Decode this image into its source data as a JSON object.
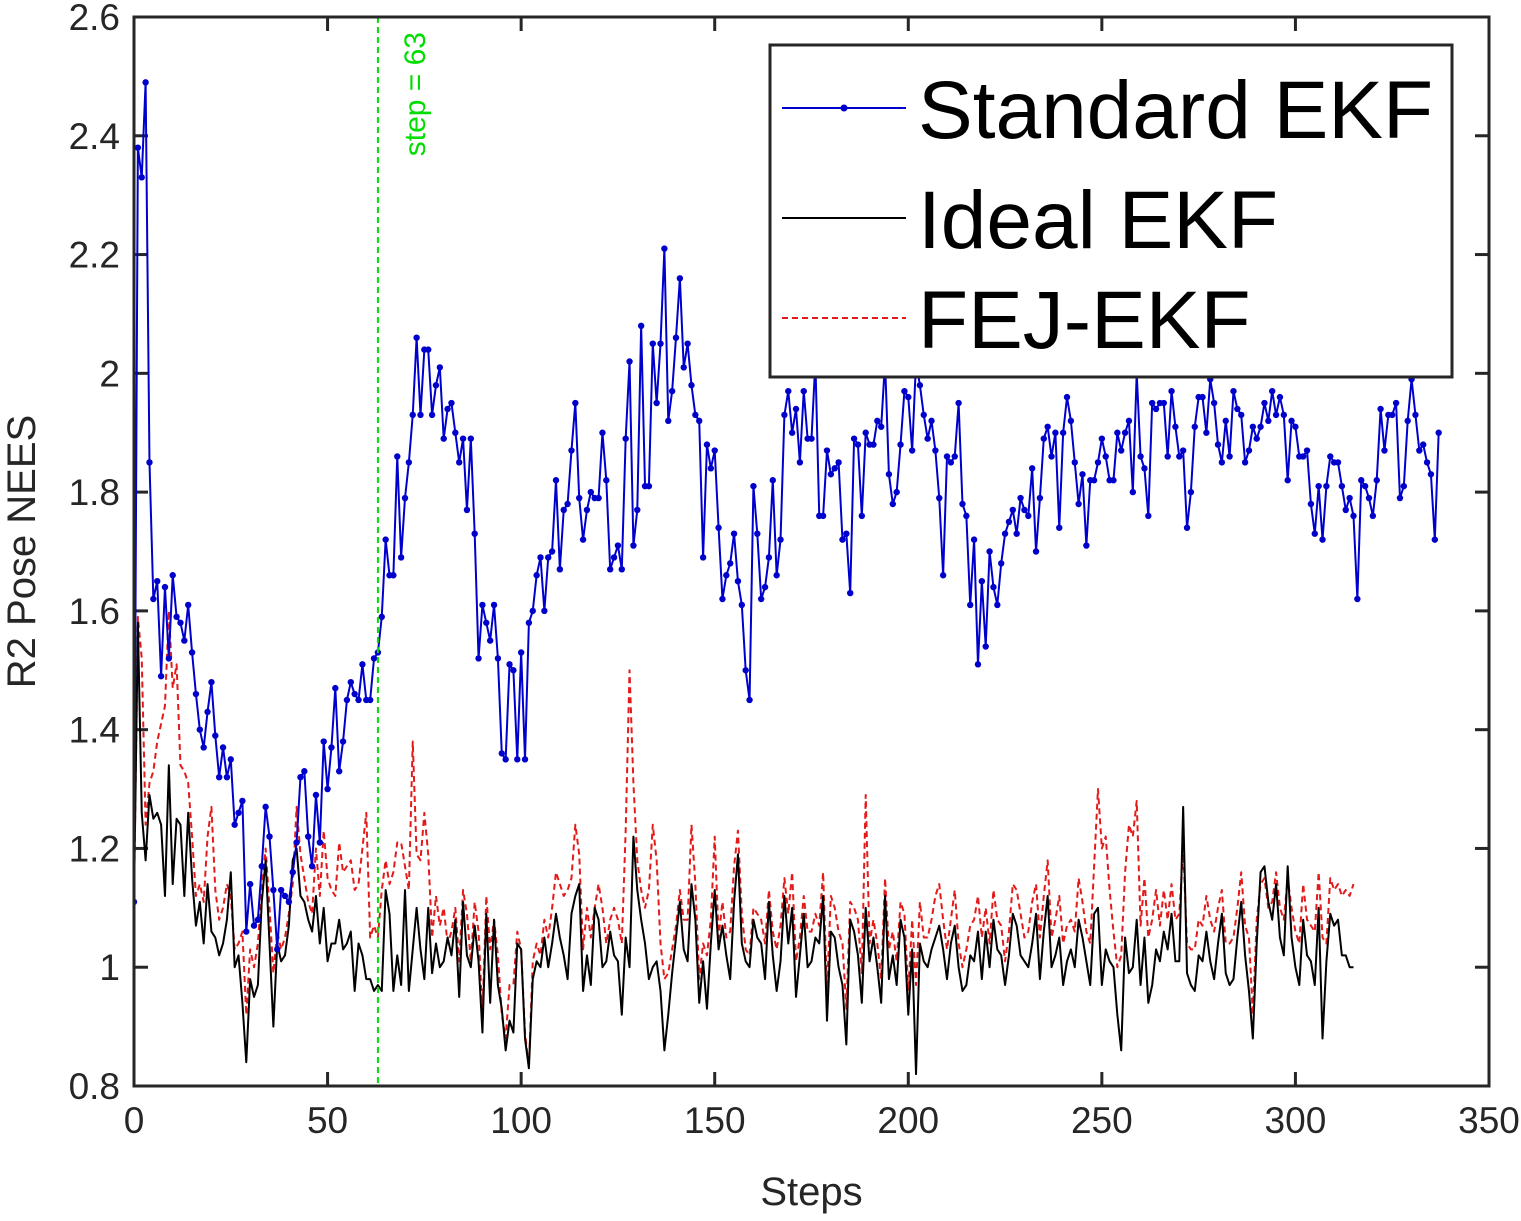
{
  "chart_data": {
    "type": "line",
    "title": "",
    "xlabel": "Steps",
    "ylabel": "R2 Pose NEES",
    "xlim": [
      0,
      350
    ],
    "ylim": [
      0.8,
      2.6
    ],
    "xticks": [
      0,
      50,
      100,
      150,
      200,
      250,
      300,
      350
    ],
    "yticks": [
      0.8,
      1,
      1.2,
      1.4,
      1.6,
      1.8,
      2,
      2.2,
      2.4,
      2.6
    ],
    "xtick_labels": [
      "0",
      "50",
      "100",
      "150",
      "200",
      "250",
      "300",
      "350"
    ],
    "ytick_labels": [
      "0.8",
      "1",
      "1.2",
      "1.4",
      "1.6",
      "1.8",
      "2",
      "2.2",
      "2.4",
      "2.6"
    ],
    "grid": false,
    "legend_position": "top-right",
    "annotation": {
      "text": "step = 63",
      "x": 63,
      "color": "#00dd00"
    },
    "series": [
      {
        "name": "Standard EKF",
        "color": "#0000cc",
        "style": "solid-markers",
        "values": [
          1.11,
          2.38,
          2.33,
          2.49,
          1.85,
          1.62,
          1.65,
          1.49,
          1.64,
          1.52,
          1.66,
          1.59,
          1.58,
          1.55,
          1.61,
          1.53,
          1.46,
          1.4,
          1.37,
          1.43,
          1.48,
          1.39,
          1.32,
          1.37,
          1.32,
          1.35,
          1.24,
          1.26,
          1.28,
          1.06,
          1.14,
          1.07,
          1.08,
          1.17,
          1.27,
          1.22,
          1.13,
          1.03,
          1.13,
          1.12,
          1.11,
          1.16,
          1.21,
          1.32,
          1.33,
          1.22,
          1.17,
          1.29,
          1.21,
          1.38,
          1.3,
          1.37,
          1.47,
          1.33,
          1.38,
          1.45,
          1.48,
          1.46,
          1.45,
          1.51,
          1.45,
          1.45,
          1.52,
          1.53,
          1.59,
          1.72,
          1.66,
          1.66,
          1.86,
          1.69,
          1.79,
          1.85,
          1.93,
          2.06,
          1.93,
          2.04,
          2.04,
          1.93,
          1.98,
          2.01,
          1.89,
          1.94,
          1.95,
          1.9,
          1.85,
          1.89,
          1.77,
          1.89,
          1.73,
          1.52,
          1.61,
          1.58,
          1.55,
          1.61,
          1.52,
          1.36,
          1.35,
          1.51,
          1.5,
          1.35,
          1.53,
          1.35,
          1.58,
          1.6,
          1.66,
          1.69,
          1.6,
          1.69,
          1.7,
          1.82,
          1.67,
          1.77,
          1.78,
          1.87,
          1.95,
          1.79,
          1.72,
          1.77,
          1.8,
          1.79,
          1.79,
          1.9,
          1.82,
          1.67,
          1.69,
          1.71,
          1.67,
          1.89,
          2.02,
          1.71,
          1.77,
          2.08,
          1.81,
          1.81,
          2.05,
          1.95,
          2.05,
          2.21,
          1.92,
          1.97,
          2.06,
          2.16,
          2.01,
          2.05,
          1.98,
          1.93,
          1.92,
          1.69,
          1.88,
          1.84,
          1.87,
          1.74,
          1.62,
          1.66,
          1.68,
          1.73,
          1.65,
          1.61,
          1.5,
          1.45,
          1.81,
          1.73,
          1.62,
          1.64,
          1.69,
          1.82,
          1.66,
          1.72,
          1.93,
          1.97,
          1.9,
          1.94,
          1.85,
          1.97,
          1.89,
          1.89,
          2.02,
          1.76,
          1.76,
          1.87,
          1.83,
          1.84,
          1.85,
          1.72,
          1.73,
          1.63,
          1.89,
          1.88,
          1.76,
          1.9,
          1.88,
          1.88,
          1.92,
          1.91,
          2.02,
          1.83,
          1.78,
          1.8,
          1.88,
          1.97,
          1.96,
          1.87,
          2.02,
          1.98,
          1.93,
          1.89,
          1.92,
          1.87,
          1.79,
          1.66,
          1.86,
          1.85,
          1.86,
          1.95,
          1.78,
          1.76,
          1.61,
          1.72,
          1.51,
          1.65,
          1.54,
          1.7,
          1.64,
          1.61,
          1.68,
          1.73,
          1.75,
          1.77,
          1.73,
          1.79,
          1.77,
          1.76,
          1.84,
          1.7,
          1.79,
          1.89,
          1.91,
          1.86,
          1.9,
          1.74,
          1.9,
          1.96,
          1.92,
          1.85,
          1.78,
          1.83,
          1.71,
          1.82,
          1.82,
          1.85,
          1.89,
          1.86,
          1.82,
          1.82,
          1.9,
          1.87,
          1.9,
          1.92,
          1.8,
          2.0,
          1.86,
          1.84,
          1.76,
          1.95,
          1.94,
          1.95,
          1.95,
          1.86,
          1.97,
          1.91,
          1.86,
          1.87,
          1.74,
          1.8,
          1.91,
          1.96,
          1.96,
          1.9,
          1.99,
          1.95,
          1.88,
          1.85,
          1.92,
          1.86,
          1.97,
          1.94,
          1.93,
          1.85,
          1.87,
          1.91,
          1.89,
          1.91,
          1.95,
          1.92,
          1.97,
          1.93,
          1.96,
          1.93,
          1.82,
          1.92,
          1.91,
          1.86,
          1.86,
          1.87,
          1.78,
          1.73,
          1.81,
          1.72,
          1.81,
          1.86,
          1.85,
          1.85,
          1.81,
          1.77,
          1.79,
          1.76,
          1.62,
          1.82,
          1.81,
          1.79,
          1.76,
          1.82,
          1.94,
          1.87,
          1.93,
          1.93,
          1.95,
          1.79,
          1.81,
          1.92,
          1.99,
          1.93,
          1.87,
          1.88,
          1.85,
          1.83,
          1.72,
          1.9
        ]
      },
      {
        "name": "Ideal EKF",
        "color": "#000000",
        "style": "solid",
        "values": [
          1.11,
          1.58,
          1.26,
          1.18,
          1.29,
          1.25,
          1.26,
          1.24,
          1.12,
          1.34,
          1.14,
          1.25,
          1.24,
          1.12,
          1.26,
          1.15,
          1.07,
          1.11,
          1.04,
          1.14,
          1.06,
          1.05,
          1.02,
          1.04,
          1.08,
          1.16,
          1.0,
          1.02,
          0.94,
          0.84,
          0.98,
          0.95,
          0.97,
          1.11,
          1.18,
          1.04,
          0.9,
          1.04,
          1.01,
          1.02,
          1.07,
          1.18,
          1.2,
          1.12,
          1.11,
          1.08,
          1.06,
          1.12,
          1.04,
          1.1,
          1.01,
          1.04,
          1.04,
          1.08,
          1.03,
          1.04,
          1.06,
          0.96,
          1.04,
          1.02,
          0.98,
          0.98,
          0.96,
          0.97,
          0.96,
          1.13,
          1.09,
          0.96,
          1.02,
          0.97,
          1.13,
          0.96,
          1.03,
          1.1,
          1.03,
          0.98,
          1.1,
          0.99,
          1.04,
          1.0,
          1.01,
          1.05,
          1.02,
          1.08,
          0.95,
          1.11,
          1.02,
          1.0,
          1.07,
          1.01,
          0.89,
          1.09,
          0.94,
          1.08,
          0.97,
          0.93,
          0.86,
          0.91,
          0.89,
          1.04,
          1.03,
          0.88,
          0.83,
          0.98,
          1.01,
          1.0,
          1.05,
          1.0,
          1.04,
          1.09,
          1.05,
          1.02,
          0.98,
          1.09,
          1.12,
          1.14,
          0.96,
          1.02,
          0.97,
          1.1,
          1.08,
          1.0,
          1.01,
          1.06,
          1.02,
          1.01,
          0.92,
          1.05,
          1.0,
          1.22,
          1.13,
          1.08,
          1.04,
          0.98,
          1.0,
          1.01,
          0.96,
          0.86,
          0.92,
          0.99,
          1.05,
          1.11,
          1.03,
          1.01,
          1.14,
          1.08,
          0.94,
          1.01,
          0.93,
          1.04,
          1.13,
          1.03,
          1.07,
          1.02,
          0.98,
          1.11,
          1.19,
          1.04,
          1.01,
          1.0,
          1.08,
          1.05,
          1.04,
          0.98,
          1.11,
          1.02,
          0.96,
          1.01,
          1.12,
          1.04,
          1.1,
          0.95,
          1.02,
          1.09,
          1.0,
          1.01,
          1.05,
          1.04,
          1.12,
          0.91,
          1.06,
          1.05,
          1.0,
          0.97,
          0.87,
          1.08,
          1.06,
          1.02,
          0.94,
          1.1,
          1.01,
          1.05,
          1.0,
          0.94,
          1.12,
          0.98,
          1.02,
          0.97,
          1.08,
          1.05,
          0.92,
          1.03,
          0.82,
          1.04,
          1.01,
          1.0,
          1.03,
          1.05,
          1.07,
          1.03,
          0.98,
          1.04,
          1.07,
          1.0,
          0.96,
          0.97,
          1.02,
          1.01,
          1.06,
          0.98,
          1.06,
          1.0,
          1.08,
          1.03,
          1.02,
          0.97,
          1.02,
          1.09,
          1.07,
          1.02,
          1.01,
          1.0,
          1.04,
          1.09,
          0.98,
          1.06,
          1.12,
          1.0,
          1.02,
          1.05,
          0.97,
          1.01,
          1.03,
          1.0,
          1.08,
          1.05,
          1.01,
          0.97,
          1.09,
          1.1,
          0.97,
          1.03,
          1.01,
          1.0,
          0.92,
          0.86,
          1.05,
          0.99,
          1.0,
          1.08,
          0.97,
          1.05,
          0.94,
          0.97,
          1.03,
          1.01,
          1.06,
          1.03,
          1.09,
          1.01,
          1.01,
          1.27,
          0.99,
          0.97,
          0.96,
          1.02,
          1.01,
          1.06,
          1.01,
          0.98,
          1.04,
          1.09,
          0.99,
          0.97,
          0.98,
          1.05,
          1.11,
          1.02,
          0.96,
          0.88,
          1.04,
          1.16,
          1.17,
          1.11,
          1.08,
          1.14,
          1.05,
          1.02,
          1.17,
          1.05,
          1.0,
          0.97,
          1.08,
          1.02,
          1.01,
          0.97,
          1.1,
          0.88,
          1.01,
          1.09,
          1.07,
          1.08,
          1.02,
          1.02,
          1.0,
          1.0
        ]
      },
      {
        "name": "FEJ-EKF",
        "color": "#e41a1a",
        "style": "dashed",
        "values": [
          1.11,
          1.59,
          1.52,
          1.24,
          1.31,
          1.33,
          1.38,
          1.41,
          1.44,
          1.6,
          1.47,
          1.51,
          1.34,
          1.33,
          1.31,
          1.22,
          1.12,
          1.14,
          1.11,
          1.22,
          1.27,
          1.13,
          1.08,
          1.1,
          1.14,
          1.12,
          1.03,
          1.04,
          1.06,
          0.92,
          1.03,
          1.0,
          1.04,
          1.13,
          1.2,
          1.1,
          0.99,
          1.06,
          1.03,
          1.05,
          1.09,
          1.14,
          1.27,
          1.19,
          1.15,
          1.11,
          1.09,
          1.2,
          1.12,
          1.23,
          1.15,
          1.13,
          1.12,
          1.21,
          1.16,
          1.17,
          1.18,
          1.13,
          1.14,
          1.2,
          1.26,
          1.05,
          1.07,
          1.05,
          1.13,
          1.18,
          1.14,
          1.16,
          1.21,
          1.21,
          1.17,
          1.13,
          1.38,
          1.19,
          1.18,
          1.26,
          1.19,
          1.05,
          1.12,
          1.07,
          1.1,
          1.04,
          1.06,
          1.1,
          1.01,
          1.13,
          1.09,
          1.01,
          1.11,
          1.06,
          0.92,
          1.12,
          1.03,
          1.08,
          1.02,
          0.92,
          0.88,
          0.97,
          0.97,
          1.06,
          1.03,
          0.89,
          0.83,
          1.01,
          1.04,
          1.02,
          1.08,
          1.05,
          1.1,
          1.16,
          1.14,
          1.12,
          1.13,
          1.15,
          1.24,
          1.19,
          1.03,
          1.1,
          1.05,
          1.1,
          1.14,
          1.1,
          1.04,
          1.08,
          1.1,
          1.08,
          1.04,
          1.23,
          1.5,
          1.31,
          1.18,
          1.13,
          1.1,
          1.13,
          1.24,
          1.18,
          1.04,
          0.98,
          0.99,
          1.03,
          1.07,
          1.13,
          1.08,
          1.08,
          1.24,
          1.14,
          0.98,
          1.04,
          1.02,
          1.08,
          1.22,
          1.05,
          1.11,
          1.05,
          1.06,
          1.17,
          1.23,
          1.09,
          1.03,
          1.02,
          1.1,
          1.09,
          1.08,
          1.04,
          1.13,
          1.06,
          1.03,
          1.07,
          1.15,
          1.09,
          1.16,
          1.01,
          1.05,
          1.12,
          1.06,
          1.06,
          1.09,
          1.07,
          1.16,
          0.96,
          1.12,
          1.1,
          1.06,
          1.04,
          0.93,
          1.11,
          1.1,
          1.08,
          0.99,
          1.29,
          1.04,
          1.08,
          1.04,
          0.98,
          1.15,
          1.03,
          1.06,
          1.01,
          1.11,
          1.09,
          0.96,
          1.08,
          0.97,
          1.11,
          1.05,
          1.05,
          1.08,
          1.12,
          1.14,
          1.08,
          1.03,
          1.08,
          1.13,
          1.04,
          1.0,
          1.03,
          1.07,
          1.08,
          1.12,
          1.05,
          1.1,
          1.04,
          1.13,
          1.08,
          1.07,
          1.01,
          1.06,
          1.14,
          1.13,
          1.09,
          1.05,
          1.06,
          1.11,
          1.14,
          1.05,
          1.12,
          1.18,
          1.05,
          1.08,
          1.12,
          1.04,
          1.07,
          1.08,
          1.06,
          1.15,
          1.11,
          1.06,
          1.04,
          1.17,
          1.3,
          1.2,
          1.22,
          1.13,
          1.06,
          1.0,
          1.02,
          1.16,
          1.24,
          1.22,
          1.28,
          1.07,
          1.15,
          1.05,
          1.08,
          1.13,
          1.07,
          1.13,
          1.08,
          1.14,
          1.08,
          1.09,
          1.2,
          1.04,
          1.03,
          1.03,
          1.08,
          1.07,
          1.12,
          1.08,
          1.06,
          1.1,
          1.13,
          1.04,
          1.04,
          1.05,
          1.1,
          1.16,
          1.07,
          1.05,
          0.92,
          1.08,
          1.14,
          1.15,
          1.1,
          1.11,
          1.16,
          1.1,
          1.08,
          1.15,
          1.1,
          1.06,
          1.04,
          1.14,
          1.08,
          1.07,
          1.06,
          1.16,
          1.05,
          1.04,
          1.15,
          1.13,
          1.14,
          1.12,
          1.13,
          1.12,
          1.14
        ]
      }
    ]
  }
}
